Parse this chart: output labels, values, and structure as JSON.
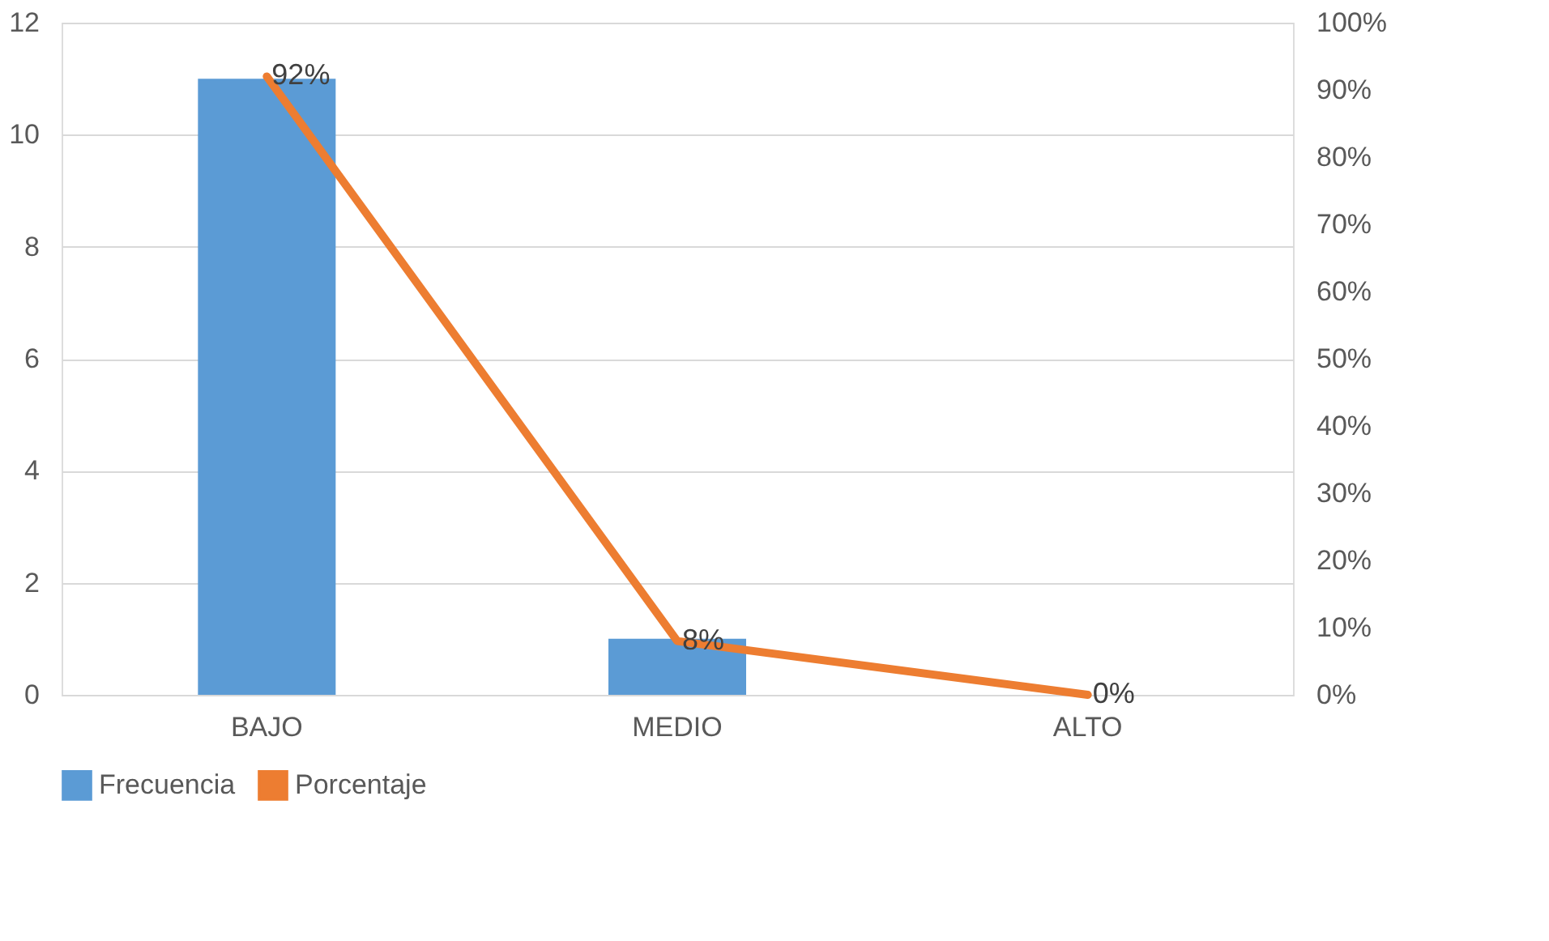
{
  "chart_data": {
    "type": "bar",
    "categories": [
      "BAJO",
      "MEDIO",
      "ALTO"
    ],
    "series": [
      {
        "name": "Frecuencia",
        "color": "#5b9bd5",
        "values": [
          11,
          1,
          0
        ]
      },
      {
        "name": "Porcentaje",
        "type": "line",
        "axis": "y2",
        "color": "#ed7d31",
        "values": [
          92,
          8,
          0
        ],
        "value_labels": [
          "92%",
          "8%",
          "0%"
        ]
      }
    ],
    "ylim": [
      0,
      12
    ],
    "yticks": [
      0,
      2,
      4,
      6,
      8,
      10,
      12
    ],
    "y2lim": [
      0,
      100
    ],
    "y2ticks": [
      {
        "value": 0,
        "label": "0%"
      },
      {
        "value": 10,
        "label": "10%"
      },
      {
        "value": 20,
        "label": "20%"
      },
      {
        "value": 30,
        "label": "30%"
      },
      {
        "value": 40,
        "label": "40%"
      },
      {
        "value": 50,
        "label": "50%"
      },
      {
        "value": 60,
        "label": "60%"
      },
      {
        "value": 70,
        "label": "70%"
      },
      {
        "value": 80,
        "label": "80%"
      },
      {
        "value": 90,
        "label": "90%"
      },
      {
        "value": 100,
        "label": "100%"
      }
    ],
    "grid": "y",
    "legend": "bottom"
  }
}
